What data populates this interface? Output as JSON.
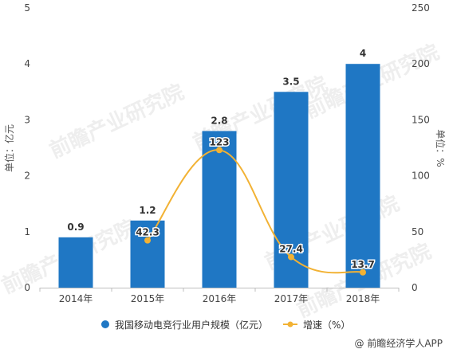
{
  "chart_data": {
    "type": "bar",
    "categories": [
      "2014年",
      "2015年",
      "2016年",
      "2017年",
      "2018年"
    ],
    "series": [
      {
        "name": "我国移动电竞行业用户规模（亿元）",
        "type": "bar",
        "axis": "left",
        "values": [
          0.9,
          1.2,
          2.8,
          3.5,
          4
        ],
        "labels": [
          "0.9",
          "1.2",
          "2.8",
          "3.5",
          "4"
        ]
      },
      {
        "name": "增速（%）",
        "type": "line",
        "axis": "right",
        "values": [
          null,
          42.3,
          123,
          27.4,
          13.7
        ],
        "labels": [
          "",
          "42.3",
          "123",
          "27.4",
          "13.7"
        ]
      }
    ],
    "ylabel": "单位：亿元",
    "ylabel_right": "单位：%",
    "ylim": [
      0,
      5
    ],
    "ylim_right": [
      0,
      250
    ],
    "yticks": [
      "0",
      "1",
      "2",
      "3",
      "4",
      "5"
    ],
    "yticks_right": [
      "0",
      "50",
      "100",
      "150",
      "200",
      "250"
    ],
    "grid": false,
    "legend_position": "bottom",
    "colors": {
      "bar": "#1f77c4",
      "line": "#f2b234"
    }
  },
  "watermark": "前瞻产业研究院",
  "source": "@ 前瞻经济学人APP"
}
